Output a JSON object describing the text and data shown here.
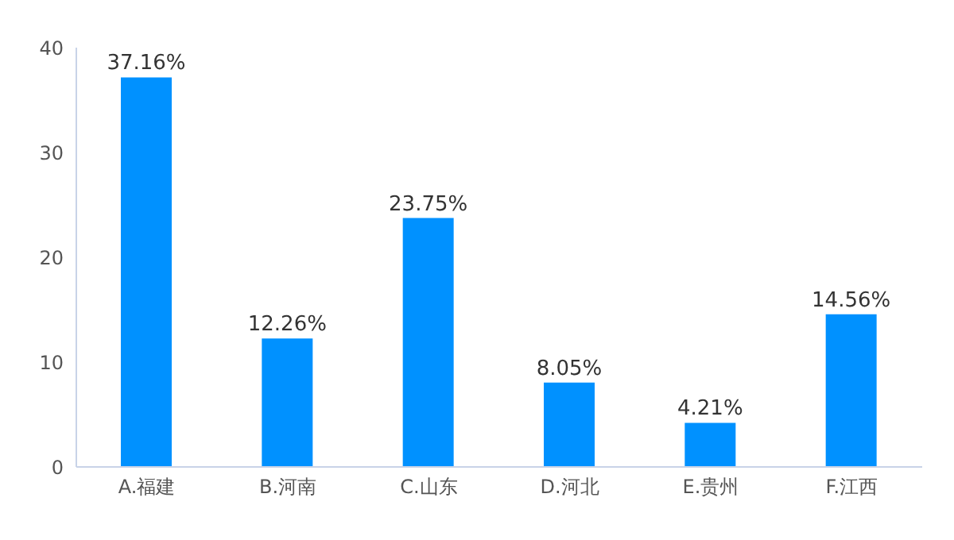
{
  "chart_data": {
    "type": "bar",
    "categories": [
      "A.福建",
      "B.河南",
      "C.山东",
      "D.河北",
      "E.贵州",
      "F.江西"
    ],
    "values": [
      37.16,
      12.26,
      23.75,
      8.05,
      4.21,
      14.56
    ],
    "value_labels": [
      "37.16%",
      "12.26%",
      "23.75%",
      "8.05%",
      "4.21%",
      "14.56%"
    ],
    "color": "#0091ff",
    "ylim": [
      0,
      40
    ],
    "yticks": [
      0,
      10,
      20,
      30,
      40
    ],
    "grid": false,
    "legend": false
  }
}
